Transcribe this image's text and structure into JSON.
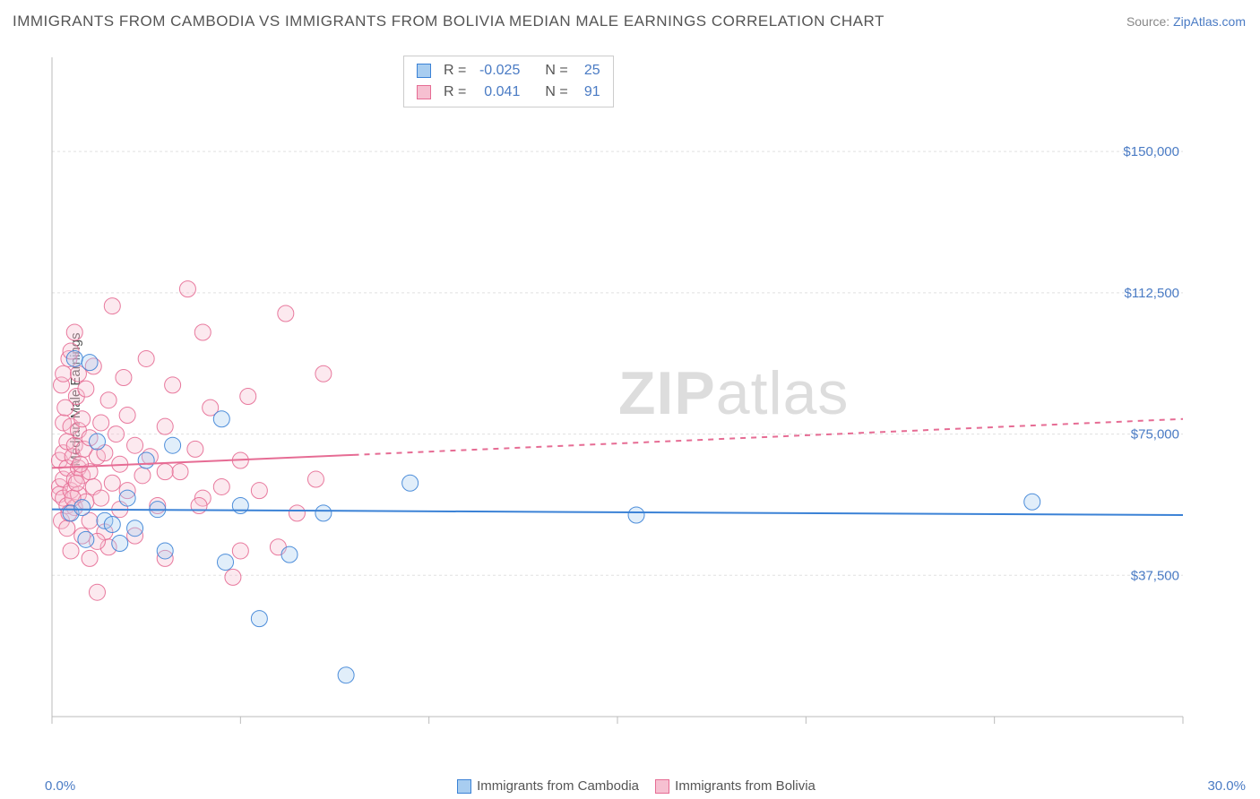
{
  "title": "IMMIGRANTS FROM CAMBODIA VS IMMIGRANTS FROM BOLIVIA MEDIAN MALE EARNINGS CORRELATION CHART",
  "source_prefix": "Source: ",
  "source_link": "ZipAtlas.com",
  "ylabel": "Median Male Earnings",
  "chart": {
    "type": "scatter",
    "xlim": [
      0,
      30
    ],
    "ylim": [
      0,
      175000
    ],
    "x_tick_values": [
      0,
      5,
      10,
      15,
      20,
      25,
      30
    ],
    "y_ticks": [
      {
        "v": 37500,
        "label": "$37,500"
      },
      {
        "v": 75000,
        "label": "$75,000"
      },
      {
        "v": 112500,
        "label": "$112,500"
      },
      {
        "v": 150000,
        "label": "$150,000"
      }
    ],
    "background": "#ffffff",
    "grid_color": "#e0e0e0",
    "axis_color": "#bbbbbb",
    "y_tick_label_color": "#4a7bc4",
    "x_lim_label_color": "#4a7bc4",
    "legend_text_color": "#555555",
    "marker_radius": 9,
    "marker_fill_opacity": 0.35,
    "marker_stroke_opacity": 0.9,
    "line_width": 2,
    "series": [
      {
        "name": "Immigrants from Cambodia",
        "color_stroke": "#3b82d6",
        "color_fill": "#a8cdf0",
        "r_label": "R =",
        "r_value": "-0.025",
        "n_label": "N =",
        "n_value": "25",
        "trend": {
          "y0": 55000,
          "y1": 53500,
          "solid_until_x": 30,
          "dashed": false
        },
        "points": [
          [
            0.5,
            54000
          ],
          [
            0.6,
            95000
          ],
          [
            0.8,
            55500
          ],
          [
            0.9,
            47000
          ],
          [
            1.0,
            94000
          ],
          [
            1.2,
            73000
          ],
          [
            1.4,
            52000
          ],
          [
            1.6,
            51000
          ],
          [
            1.8,
            46000
          ],
          [
            2.0,
            58000
          ],
          [
            2.5,
            68000
          ],
          [
            2.8,
            55000
          ],
          [
            3.0,
            44000
          ],
          [
            3.2,
            72000
          ],
          [
            4.5,
            79000
          ],
          [
            4.6,
            41000
          ],
          [
            5.0,
            56000
          ],
          [
            5.5,
            26000
          ],
          [
            6.3,
            43000
          ],
          [
            7.2,
            54000
          ],
          [
            7.8,
            11000
          ],
          [
            9.5,
            62000
          ],
          [
            15.5,
            53500
          ],
          [
            26.0,
            57000
          ],
          [
            2.2,
            50000
          ]
        ]
      },
      {
        "name": "Immigrants from Bolivia",
        "color_stroke": "#e66c94",
        "color_fill": "#f6c0d1",
        "r_label": "R =",
        "r_value": "0.041",
        "n_label": "N =",
        "n_value": "91",
        "trend": {
          "y0": 66000,
          "y1": 79000,
          "solid_until_x": 8,
          "dashed": true
        },
        "points": [
          [
            0.2,
            61000
          ],
          [
            0.2,
            68000
          ],
          [
            0.2,
            59000
          ],
          [
            0.25,
            52000
          ],
          [
            0.25,
            88000
          ],
          [
            0.3,
            78000
          ],
          [
            0.3,
            70000
          ],
          [
            0.3,
            63000
          ],
          [
            0.3,
            58000
          ],
          [
            0.3,
            91000
          ],
          [
            0.35,
            82000
          ],
          [
            0.4,
            73000
          ],
          [
            0.4,
            66000
          ],
          [
            0.4,
            56000
          ],
          [
            0.4,
            50000
          ],
          [
            0.45,
            95000
          ],
          [
            0.5,
            60000
          ],
          [
            0.5,
            77000
          ],
          [
            0.5,
            44000
          ],
          [
            0.5,
            97000
          ],
          [
            0.55,
            69000
          ],
          [
            0.6,
            102000
          ],
          [
            0.6,
            63000
          ],
          [
            0.6,
            55500
          ],
          [
            0.6,
            72000
          ],
          [
            0.65,
            85000
          ],
          [
            0.7,
            76000
          ],
          [
            0.7,
            59000
          ],
          [
            0.7,
            66000
          ],
          [
            0.7,
            91000
          ],
          [
            0.8,
            48000
          ],
          [
            0.8,
            79000
          ],
          [
            0.8,
            64000
          ],
          [
            0.85,
            71000
          ],
          [
            0.9,
            57000
          ],
          [
            0.9,
            87000
          ],
          [
            1.0,
            65000
          ],
          [
            1.0,
            74000
          ],
          [
            1.0,
            52000
          ],
          [
            1.1,
            61000
          ],
          [
            1.1,
            93000
          ],
          [
            1.2,
            69000
          ],
          [
            1.2,
            33000
          ],
          [
            1.3,
            78000
          ],
          [
            1.3,
            58000
          ],
          [
            1.4,
            49000
          ],
          [
            1.4,
            70000
          ],
          [
            1.5,
            84000
          ],
          [
            1.5,
            45000
          ],
          [
            1.6,
            62000
          ],
          [
            1.6,
            109000
          ],
          [
            1.7,
            75000
          ],
          [
            1.8,
            55000
          ],
          [
            1.8,
            67000
          ],
          [
            1.9,
            90000
          ],
          [
            2.0,
            60000
          ],
          [
            2.0,
            80000
          ],
          [
            2.2,
            48000
          ],
          [
            2.2,
            72000
          ],
          [
            2.4,
            64000
          ],
          [
            2.5,
            95000
          ],
          [
            2.6,
            69000
          ],
          [
            2.8,
            56000
          ],
          [
            3.0,
            77000
          ],
          [
            3.0,
            42000
          ],
          [
            3.2,
            88000
          ],
          [
            3.4,
            65000
          ],
          [
            3.6,
            113500
          ],
          [
            3.8,
            71000
          ],
          [
            4.0,
            58000
          ],
          [
            4.0,
            102000
          ],
          [
            4.2,
            82000
          ],
          [
            4.5,
            61000
          ],
          [
            4.8,
            37000
          ],
          [
            5.0,
            44000
          ],
          [
            5.0,
            68000
          ],
          [
            5.2,
            85000
          ],
          [
            5.5,
            60000
          ],
          [
            6.0,
            45000
          ],
          [
            6.2,
            107000
          ],
          [
            6.5,
            54000
          ],
          [
            7.0,
            63000
          ],
          [
            7.2,
            91000
          ],
          [
            1.2,
            46500
          ],
          [
            1.0,
            42000
          ],
          [
            3.0,
            65000
          ],
          [
            3.9,
            56000
          ],
          [
            0.45,
            54000
          ],
          [
            0.55,
            58000
          ],
          [
            0.65,
            62000
          ],
          [
            0.75,
            67000
          ]
        ]
      }
    ]
  },
  "legend_bottom": {
    "items": [
      {
        "swatch_fill": "#a8cdf0",
        "swatch_stroke": "#3b82d6",
        "label": "Immigrants from Cambodia"
      },
      {
        "swatch_fill": "#f6c0d1",
        "swatch_stroke": "#e66c94",
        "label": "Immigrants from Bolivia"
      }
    ]
  },
  "xlim_labels": {
    "left": "0.0%",
    "right": "30.0%"
  },
  "watermark": {
    "bold": "ZIP",
    "light": "atlas"
  }
}
